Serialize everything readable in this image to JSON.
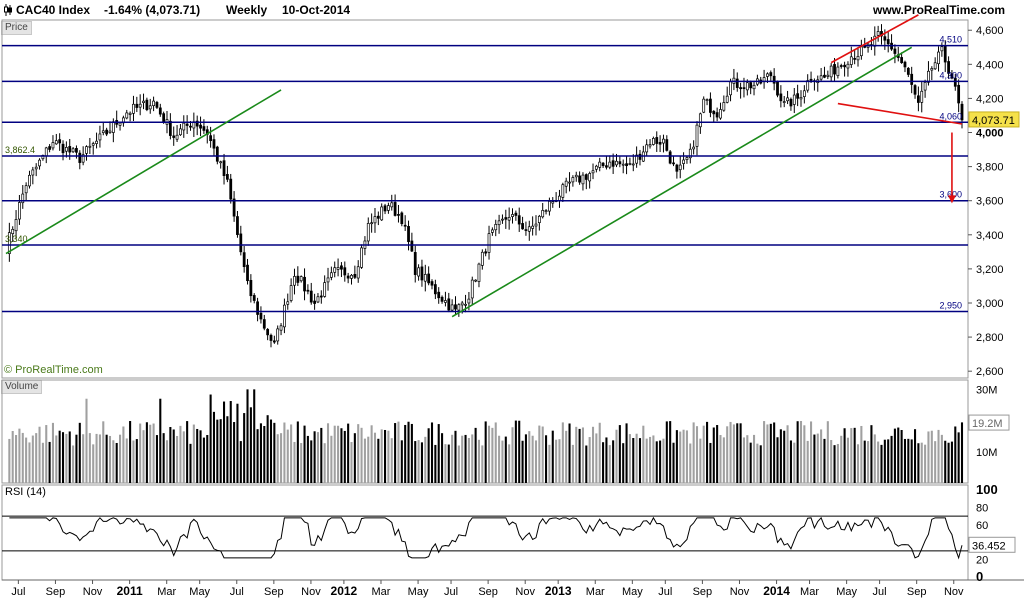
{
  "header": {
    "symbol": "CAC40 Index",
    "change": "-1.64% (4,073.71)",
    "period": "Weekly",
    "date": "10-Oct-2014",
    "site": "www.ProRealTime.com",
    "copyright": "© ProRealTime.com"
  },
  "colors": {
    "up": "#ffffff",
    "down": "#000000",
    "level": "#000080",
    "trend": "#1a8a1a",
    "channel": "#e01010",
    "arrow": "#e01010",
    "volume_up": "#a0a0a0",
    "volume_down": "#000000",
    "last_price_bg": "#f5e14a"
  },
  "chart_data": [
    {
      "type": "candlestick",
      "panel": "Price",
      "label": "Price",
      "y_range": [
        2560,
        4660
      ],
      "y_ticks": [
        2600,
        2800,
        3000,
        3200,
        3400,
        3600,
        3800,
        4000,
        4200,
        4400,
        4600
      ],
      "y_tick_labels": [
        "2,600",
        "2,800",
        "3,000",
        "3,200",
        "3,400",
        "3,600",
        "3,800",
        "4,000",
        "4,200",
        "4,400",
        "4,600"
      ],
      "last_price": "4,073.71",
      "last_price_value": 4073.71,
      "horizontal_levels": [
        {
          "value": 4510,
          "label": "4,510"
        },
        {
          "value": 4300,
          "label": "4,300"
        },
        {
          "value": 4060,
          "label": "4,060"
        },
        {
          "value": 3862.4,
          "label": "3,862.4"
        },
        {
          "value": 3600,
          "label": "3,600"
        },
        {
          "value": 3340,
          "label": "3,340"
        },
        {
          "value": 2950,
          "label": "2,950"
        }
      ],
      "trendlines": [
        {
          "name": "uptrend-2010",
          "from": {
            "week": 0,
            "price": 3290
          },
          "to": {
            "week": 82,
            "price": 4250
          }
        },
        {
          "name": "uptrend-2012",
          "from": {
            "week": 133,
            "price": 2920
          },
          "to": {
            "week": 270,
            "price": 4500
          }
        },
        {
          "name": "channel-top",
          "from": {
            "week": 246,
            "price": 4410
          },
          "to": {
            "week": 272,
            "price": 4690
          }
        },
        {
          "name": "channel-bottom",
          "from": {
            "week": 248,
            "price": 4170
          },
          "to": {
            "week": 285,
            "price": 4050
          }
        }
      ],
      "arrow": {
        "week": 282,
        "from": 4000,
        "to": 3590
      },
      "weeks": 285,
      "anchors": [
        [
          0,
          3320
        ],
        [
          6,
          3700
        ],
        [
          14,
          3950
        ],
        [
          22,
          3850
        ],
        [
          30,
          4000
        ],
        [
          36,
          4120
        ],
        [
          44,
          4180
        ],
        [
          50,
          3980
        ],
        [
          56,
          4070
        ],
        [
          60,
          4000
        ],
        [
          66,
          3700
        ],
        [
          72,
          3100
        ],
        [
          76,
          2900
        ],
        [
          80,
          2750
        ],
        [
          86,
          3180
        ],
        [
          92,
          3000
        ],
        [
          98,
          3180
        ],
        [
          104,
          3180
        ],
        [
          108,
          3450
        ],
        [
          114,
          3580
        ],
        [
          118,
          3500
        ],
        [
          122,
          3200
        ],
        [
          128,
          3070
        ],
        [
          134,
          2950
        ],
        [
          138,
          3050
        ],
        [
          144,
          3380
        ],
        [
          150,
          3520
        ],
        [
          156,
          3420
        ],
        [
          162,
          3580
        ],
        [
          168,
          3700
        ],
        [
          174,
          3760
        ],
        [
          180,
          3830
        ],
        [
          186,
          3800
        ],
        [
          192,
          3950
        ],
        [
          196,
          3950
        ],
        [
          200,
          3750
        ],
        [
          204,
          3870
        ],
        [
          208,
          4180
        ],
        [
          212,
          4120
        ],
        [
          216,
          4290
        ],
        [
          220,
          4280
        ],
        [
          224,
          4280
        ],
        [
          228,
          4340
        ],
        [
          232,
          4160
        ],
        [
          236,
          4200
        ],
        [
          240,
          4330
        ],
        [
          244,
          4320
        ],
        [
          248,
          4390
        ],
        [
          252,
          4450
        ],
        [
          256,
          4480
        ],
        [
          260,
          4560
        ],
        [
          264,
          4500
        ],
        [
          268,
          4380
        ],
        [
          272,
          4160
        ],
        [
          276,
          4380
        ],
        [
          279,
          4470
        ],
        [
          282,
          4330
        ],
        [
          285,
          4073
        ]
      ]
    },
    {
      "type": "bar",
      "panel": "Volume",
      "label": "Volume",
      "y_ticks": [
        10,
        30
      ],
      "y_tick_labels": [
        "10M",
        "30M"
      ],
      "y_range": [
        0,
        33
      ],
      "last_value": "19.2M"
    },
    {
      "type": "line",
      "panel": "RSI",
      "label": "RSI (14)",
      "y_range": [
        0,
        100
      ],
      "y_ticks": [
        0,
        20,
        40,
        60,
        80,
        100
      ],
      "y_tick_labels": [
        "0",
        "20",
        "40",
        "60",
        "80",
        "100"
      ],
      "bands": [
        30,
        70
      ],
      "last_value": "36.452"
    }
  ],
  "x_axis": [
    {
      "label": "Jul",
      "week": 3,
      "major": false
    },
    {
      "label": "Sep",
      "week": 12,
      "major": false
    },
    {
      "label": "Nov",
      "week": 21,
      "major": false
    },
    {
      "label": "2011",
      "week": 30,
      "major": true
    },
    {
      "label": "Mar",
      "week": 39,
      "major": false
    },
    {
      "label": "May",
      "week": 47,
      "major": false
    },
    {
      "label": "Jul",
      "week": 56,
      "major": false
    },
    {
      "label": "Sep",
      "week": 65,
      "major": false
    },
    {
      "label": "Nov",
      "week": 74,
      "major": false
    },
    {
      "label": "2012",
      "week": 82,
      "major": true
    },
    {
      "label": "Mar",
      "week": 91,
      "major": false
    },
    {
      "label": "May",
      "week": 100,
      "major": false
    },
    {
      "label": "Jul",
      "week": 108,
      "major": false
    },
    {
      "label": "Sep",
      "week": 117,
      "major": false
    },
    {
      "label": "Nov",
      "week": 126,
      "major": false
    },
    {
      "label": "2013",
      "week": 134,
      "major": true
    },
    {
      "label": "Mar",
      "week": 143,
      "major": false
    },
    {
      "label": "May",
      "week": 152,
      "major": false
    },
    {
      "label": "Jul",
      "week": 160,
      "major": false
    },
    {
      "label": "Sep",
      "week": 169,
      "major": false
    },
    {
      "label": "Nov",
      "week": 178,
      "major": false
    },
    {
      "label": "2014",
      "week": 187,
      "major": true
    },
    {
      "label": "Mar",
      "week": 195,
      "major": false
    },
    {
      "label": "May",
      "week": 204,
      "major": false
    },
    {
      "label": "Jul",
      "week": 212,
      "major": false
    },
    {
      "label": "Sep",
      "week": 221,
      "major": false
    },
    {
      "label": "Nov",
      "week": 230,
      "major": false
    }
  ]
}
